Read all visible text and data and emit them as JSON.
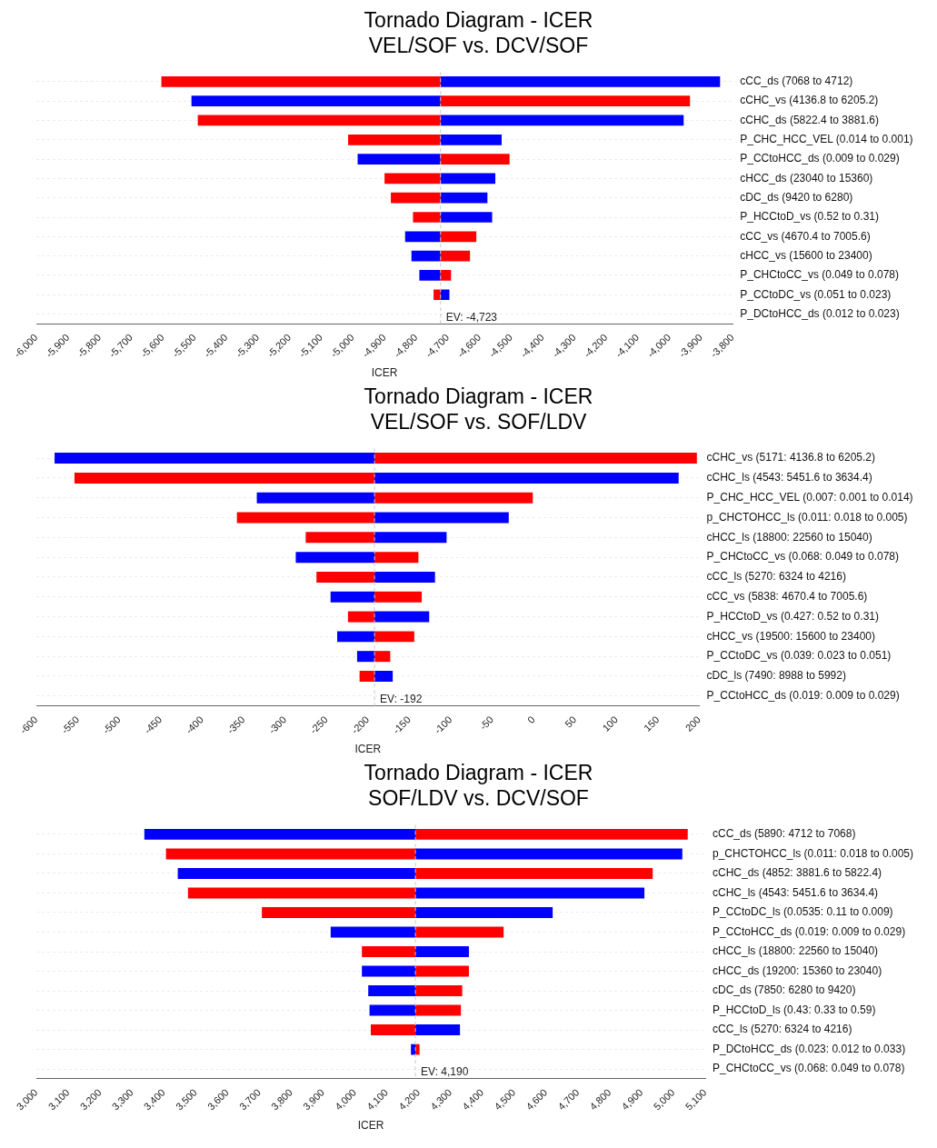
{
  "chart_data": [
    {
      "type": "bar",
      "orientation": "horizontal",
      "title": "Tornado Diagram - ICER",
      "subtitle": "VEL/SOF vs. DCV/SOF",
      "xlabel": "ICER",
      "categories": [
        "cCC_ds (7068 to 4712)",
        "cCHC_vs (4136.8 to 6205.2)",
        "cCHC_ds (5822.4 to 3881.6)",
        "P_CHC_HCC_VEL (0.014 to 0.001)",
        "P_CCtoHCC_ds (0.009 to 0.029)",
        "cHCC_ds (23040 to 15360)",
        "cDC_ds (9420 to 6280)",
        "P_HCCtoD_vs (0.52 to 0.31)",
        "cCC_vs (4670.4 to 7005.6)",
        "cHCC_vs (15600 to 23400)",
        "P_CHCtoCC_vs (0.049 to 0.078)",
        "P_CCtoDC_vs (0.051 to 0.023)",
        "P_DCtoHCC_ds (0.012 to 0.023)"
      ],
      "series": [
        {
          "color": "#ff0000",
          "base": [
            -4723,
            -4723,
            -4723,
            -4723,
            -4723,
            -4723,
            -4723,
            -4723,
            -4723,
            -4723,
            -4723,
            -4723,
            null
          ],
          "values": [
            -882,
            788,
            -767,
            -292,
            218,
            -177,
            -157,
            -87,
            113,
            93,
            33,
            -22,
            null
          ]
        },
        {
          "color": "#0000ff",
          "base": [
            -4723,
            -4723,
            -4723,
            -4723,
            -4723,
            -4723,
            -4723,
            -4723,
            -4723,
            -4723,
            -4723,
            -4723,
            null
          ],
          "values": [
            883,
            -787,
            768,
            193,
            -262,
            173,
            148,
            163,
            -112,
            -92,
            -67,
            28,
            null
          ]
        }
      ],
      "xlim": [
        -6000,
        -3800
      ],
      "xticks": [
        {
          "value": -6000,
          "label": "-6,000"
        },
        {
          "value": -5900,
          "label": "-5,900"
        },
        {
          "value": -5800,
          "label": "-5,800"
        },
        {
          "value": -5700,
          "label": "-5,700"
        },
        {
          "value": -5600,
          "label": "-5,600"
        },
        {
          "value": -5500,
          "label": "-5,500"
        },
        {
          "value": -5400,
          "label": "-5,400"
        },
        {
          "value": -5300,
          "label": "-5,300"
        },
        {
          "value": -5200,
          "label": "-5,200"
        },
        {
          "value": -5100,
          "label": "-5,100"
        },
        {
          "value": -5000,
          "label": "-5,000"
        },
        {
          "value": -4900,
          "label": "-4,900"
        },
        {
          "value": -4800,
          "label": "-4,800"
        },
        {
          "value": -4700,
          "label": "-4,700"
        },
        {
          "value": -4600,
          "label": "-4,600"
        },
        {
          "value": -4500,
          "label": "-4,500"
        },
        {
          "value": -4400,
          "label": "-4,400"
        },
        {
          "value": -4300,
          "label": "-4,300"
        },
        {
          "value": -4200,
          "label": "-4,200"
        },
        {
          "value": -4100,
          "label": "-4,100"
        },
        {
          "value": -4000,
          "label": "-4,000"
        },
        {
          "value": -3900,
          "label": "-3,900"
        },
        {
          "value": -3800,
          "label": "-3,800"
        }
      ],
      "ref_lines": [
        {
          "axis": "x",
          "value": -4723,
          "label": "EV: -4,723",
          "color": "#c8c8c8",
          "line_style": "dashed"
        }
      ],
      "grid": "y",
      "legend": false
    },
    {
      "type": "bar",
      "orientation": "horizontal",
      "title": "Tornado Diagram - ICER",
      "subtitle": "VEL/SOF vs. SOF/LDV",
      "xlabel": "ICER",
      "categories": [
        "cCHC_vs (5171: 4136.8 to 6205.2)",
        "cCHC_ls (4543: 5451.6 to 3634.4)",
        "P_CHC_HCC_VEL (0.007: 0.001 to 0.014)",
        "p_CHCTOHCC_ls (0.011: 0.018 to 0.005)",
        "cHCC_ls (18800: 22560 to 15040)",
        "P_CHCtoCC_vs (0.068: 0.049 to 0.078)",
        "cCC_ls (5270: 6324 to 4216)",
        "cCC_vs (5838: 4670.4 to 7005.6)",
        "P_HCCtoD_vs (0.427: 0.52 to 0.31)",
        "cHCC_vs (19500: 15600 to 23400)",
        "P_CCtoDC_vs (0.039: 0.023 to 0.051)",
        "cDC_ls (7490: 8988 to 5992)",
        "P_CCtoHCC_ds (0.019: 0.009 to 0.029)"
      ],
      "series": [
        {
          "color": "#ff0000",
          "base": [
            -192,
            -192,
            -192,
            -192,
            -192,
            -192,
            -192,
            -192,
            -192,
            -192,
            -192,
            -192,
            null
          ],
          "values": [
            389,
            -362,
            191,
            -166,
            -83,
            53,
            -70,
            57,
            -32,
            48,
            19,
            -18,
            null
          ]
        },
        {
          "color": "#0000ff",
          "base": [
            -192,
            -192,
            -192,
            -192,
            -192,
            -192,
            -192,
            -192,
            -192,
            -192,
            -192,
            -192,
            null
          ],
          "values": [
            -386,
            367,
            -142,
            162,
            87,
            -95,
            73,
            -53,
            66,
            -45,
            -21,
            22,
            null
          ]
        }
      ],
      "xlim": [
        -600,
        200
      ],
      "xticks": [
        -600,
        -550,
        -500,
        -450,
        -400,
        -350,
        -300,
        -250,
        -200,
        -150,
        -100,
        -50,
        0,
        50,
        100,
        150,
        200
      ],
      "ref_lines": [
        {
          "axis": "x",
          "value": -192,
          "label": "EV: -192",
          "color": "#c8c8c8",
          "line_style": "dashed"
        }
      ],
      "grid": "y",
      "legend": false
    },
    {
      "type": "bar",
      "orientation": "horizontal",
      "title": "Tornado Diagram - ICER",
      "subtitle": "SOF/LDV vs. DCV/SOF",
      "xlabel": "ICER",
      "categories": [
        "cCC_ds (5890: 4712 to 7068)",
        "p_CHCTOHCC_ls (0.011: 0.018 to 0.005)",
        "cCHC_ds (4852: 3881.6 to 5822.4)",
        "cCHC_ls (4543: 5451.6 to 3634.4)",
        "P_CCtoDC_ls (0.0535: 0.11 to 0.009)",
        "P_CCtoHCC_ds (0.019: 0.009 to 0.029)",
        "cHCC_ls (18800: 22560 to 15040)",
        "cHCC_ds (19200: 15360 to 23040)",
        "cDC_ds (7850: 6280 to 9420)",
        "P_HCCtoD_ls (0.43: 0.33 to 0.59)",
        "cCC_ls (5270: 6324 to 4216)",
        "P_DCtoHCC_ds (0.023: 0.012 to 0.033)",
        "P_CHCtoCC_vs (0.068: 0.049 to 0.078)"
      ],
      "series": [
        {
          "color": "#ff0000",
          "base": [
            4190,
            4190,
            4190,
            4190,
            4190,
            4190,
            4190,
            4190,
            4190,
            4190,
            4190,
            4190,
            null
          ],
          "values": [
            855,
            -783,
            745,
            -714,
            -482,
            277,
            -168,
            168,
            147,
            143,
            -140,
            13,
            null
          ]
        },
        {
          "color": "#0000ff",
          "base": [
            4190,
            4190,
            4190,
            4190,
            4190,
            4190,
            4190,
            4190,
            4190,
            4190,
            4190,
            4190,
            null
          ],
          "values": [
            -851,
            838,
            -746,
            719,
            431,
            -266,
            168,
            -168,
            -148,
            -144,
            140,
            -14,
            null
          ]
        }
      ],
      "xlim": [
        3000,
        5100
      ],
      "xticks": [
        {
          "value": 3000,
          "label": "3,000"
        },
        {
          "value": 3100,
          "label": "3,100"
        },
        {
          "value": 3200,
          "label": "3,200"
        },
        {
          "value": 3300,
          "label": "3,300"
        },
        {
          "value": 3400,
          "label": "3,400"
        },
        {
          "value": 3500,
          "label": "3,500"
        },
        {
          "value": 3600,
          "label": "3,600"
        },
        {
          "value": 3700,
          "label": "3,700"
        },
        {
          "value": 3800,
          "label": "3,800"
        },
        {
          "value": 3900,
          "label": "3,900"
        },
        {
          "value": 4000,
          "label": "4,000"
        },
        {
          "value": 4100,
          "label": "4,100"
        },
        {
          "value": 4200,
          "label": "4,200"
        },
        {
          "value": 4300,
          "label": "4,300"
        },
        {
          "value": 4400,
          "label": "4,400"
        },
        {
          "value": 4500,
          "label": "4,500"
        },
        {
          "value": 4600,
          "label": "4,600"
        },
        {
          "value": 4700,
          "label": "4,700"
        },
        {
          "value": 4800,
          "label": "4,800"
        },
        {
          "value": 4900,
          "label": "4,900"
        },
        {
          "value": 5000,
          "label": "5,000"
        },
        {
          "value": 5100,
          "label": "5,100"
        }
      ],
      "ref_lines": [
        {
          "axis": "x",
          "value": 4190,
          "label": "EV: 4,190",
          "color": "#c8c8c8",
          "line_style": "dashed"
        }
      ],
      "grid": "y",
      "legend": false
    }
  ]
}
